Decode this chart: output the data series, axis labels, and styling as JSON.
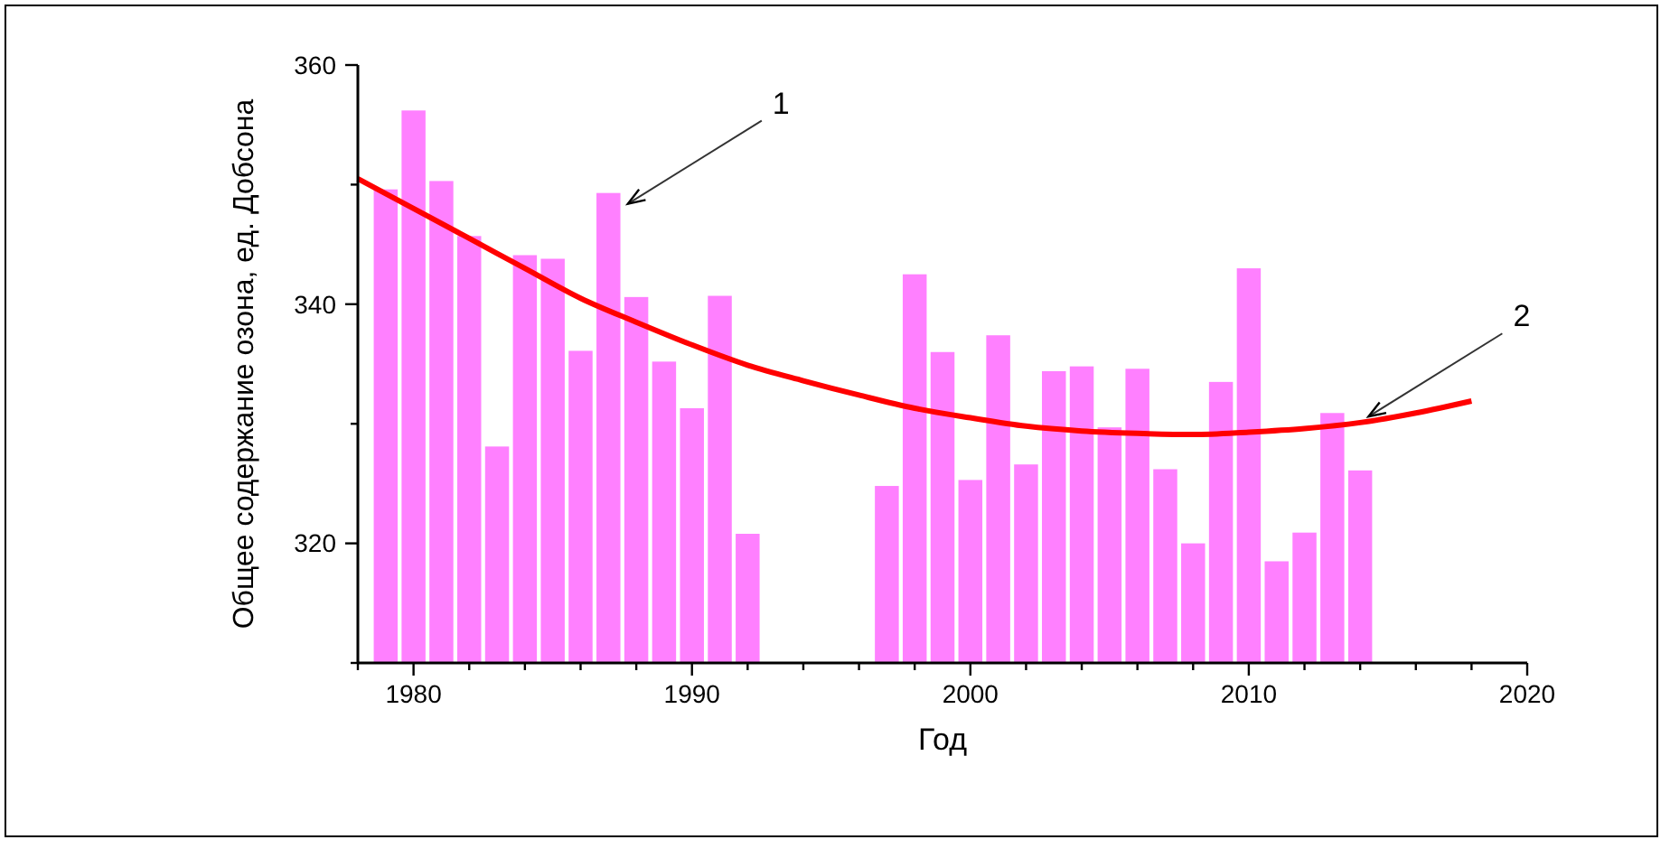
{
  "chart_data": {
    "type": "bar",
    "xlabel": "Год",
    "ylabel": "Общее содержание озона, ед. Добсона",
    "xlim": [
      1978,
      2020
    ],
    "ylim": [
      310,
      360
    ],
    "xticks": [
      {
        "value": 1978,
        "label": null
      },
      1980,
      {
        "value": 1982,
        "label": null
      },
      {
        "value": 1984,
        "label": null
      },
      {
        "value": 1986,
        "label": null
      },
      {
        "value": 1988,
        "label": null
      },
      1990,
      {
        "value": 1992,
        "label": null
      },
      {
        "value": 1994,
        "label": null
      },
      {
        "value": 1996,
        "label": null
      },
      {
        "value": 1998,
        "label": null
      },
      2000,
      {
        "value": 2002,
        "label": null
      },
      {
        "value": 2004,
        "label": null
      },
      {
        "value": 2006,
        "label": null
      },
      {
        "value": 2008,
        "label": null
      },
      2010,
      {
        "value": 2012,
        "label": null
      },
      {
        "value": 2014,
        "label": null
      },
      {
        "value": 2016,
        "label": null
      },
      {
        "value": 2018,
        "label": null
      },
      2020
    ],
    "yticks": [
      {
        "value": 310,
        "label": null
      },
      320,
      {
        "value": 330,
        "label": null
      },
      340,
      {
        "value": 350,
        "label": null
      },
      360
    ],
    "series": [
      {
        "color": "#ff80ff",
        "x": [
          1979,
          1980,
          1981,
          1982,
          1983,
          1984,
          1985,
          1986,
          1987,
          1988,
          1989,
          1990,
          1991,
          1992,
          1997,
          1998,
          1999,
          2000,
          2001,
          2002,
          2003,
          2004,
          2005,
          2006,
          2007,
          2008,
          2009,
          2010,
          2011,
          2012,
          2013,
          2014
        ],
        "values": [
          349.6,
          356.2,
          350.3,
          345.7,
          328.1,
          344.1,
          343.8,
          336.1,
          349.3,
          340.6,
          335.2,
          331.3,
          340.7,
          320.8,
          324.8,
          342.5,
          336.0,
          325.3,
          337.4,
          326.6,
          334.4,
          334.8,
          329.7,
          334.6,
          326.2,
          320.0,
          333.5,
          343.0,
          318.5,
          320.9,
          330.9,
          326.1
        ]
      },
      {
        "type": "line",
        "color": "#ff0000",
        "marker": "none",
        "line_style": "solid",
        "x": [
          1978,
          1980,
          1982,
          1984,
          1986,
          1988,
          1990,
          1992,
          1994,
          1996,
          1998,
          2000,
          2002,
          2004,
          2006,
          2008,
          2010,
          2012,
          2014,
          2016,
          2018
        ],
        "values": [
          350.5,
          348.0,
          345.5,
          343.0,
          340.5,
          338.5,
          336.6,
          334.9,
          333.6,
          332.4,
          331.3,
          330.5,
          329.8,
          329.4,
          329.2,
          329.1,
          329.3,
          329.6,
          330.1,
          330.9,
          331.9
        ]
      }
    ],
    "annotations": [
      {
        "text": "1",
        "x": 1987.7,
        "y": 348.4
      },
      {
        "text": "2",
        "x": 2014.3,
        "y": 330.6
      }
    ]
  }
}
